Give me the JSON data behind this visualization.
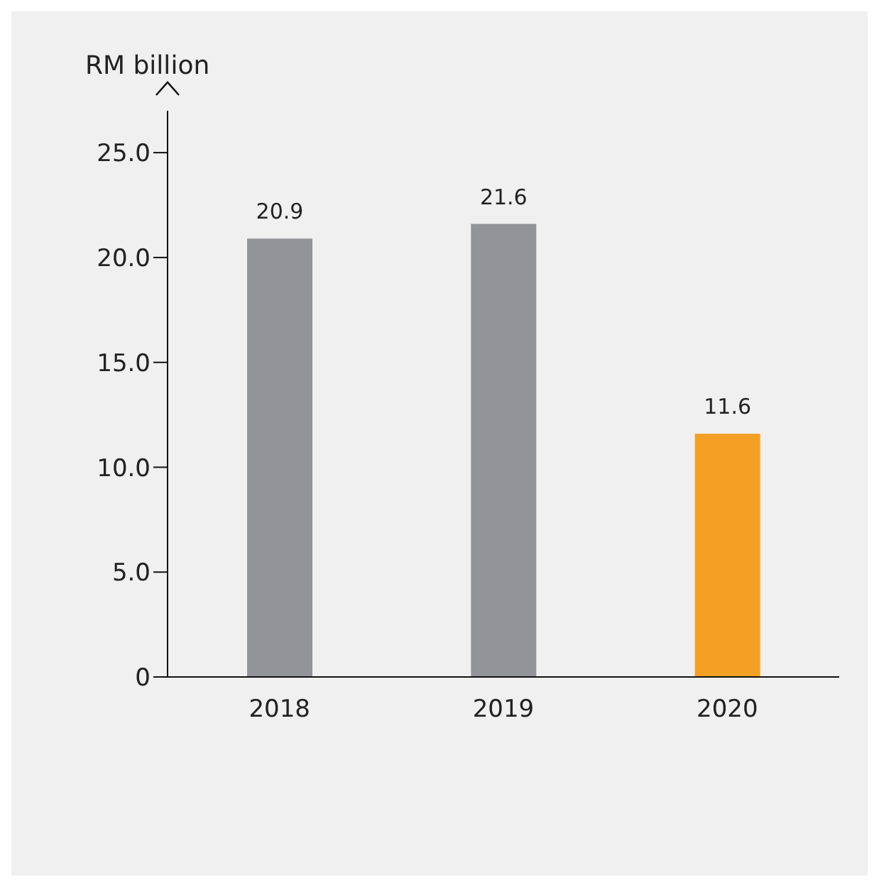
{
  "chart_data": {
    "type": "bar",
    "ylabel": "RM billion",
    "categories": [
      "2018",
      "2019",
      "2020"
    ],
    "values": [
      20.9,
      21.6,
      11.6
    ],
    "colors": [
      "#939498",
      "#939498",
      "#f4a024"
    ],
    "ylim": [
      0,
      27
    ],
    "yticks": [
      0,
      {
        "value": 5,
        "label": "5.0"
      },
      {
        "value": 10,
        "label": "10.0"
      },
      {
        "value": 15,
        "label": "15.0"
      },
      {
        "value": 20,
        "label": "20.0"
      },
      {
        "value": 25,
        "label": "25.0"
      }
    ],
    "data_labels": true,
    "grid": false,
    "legend": false
  }
}
